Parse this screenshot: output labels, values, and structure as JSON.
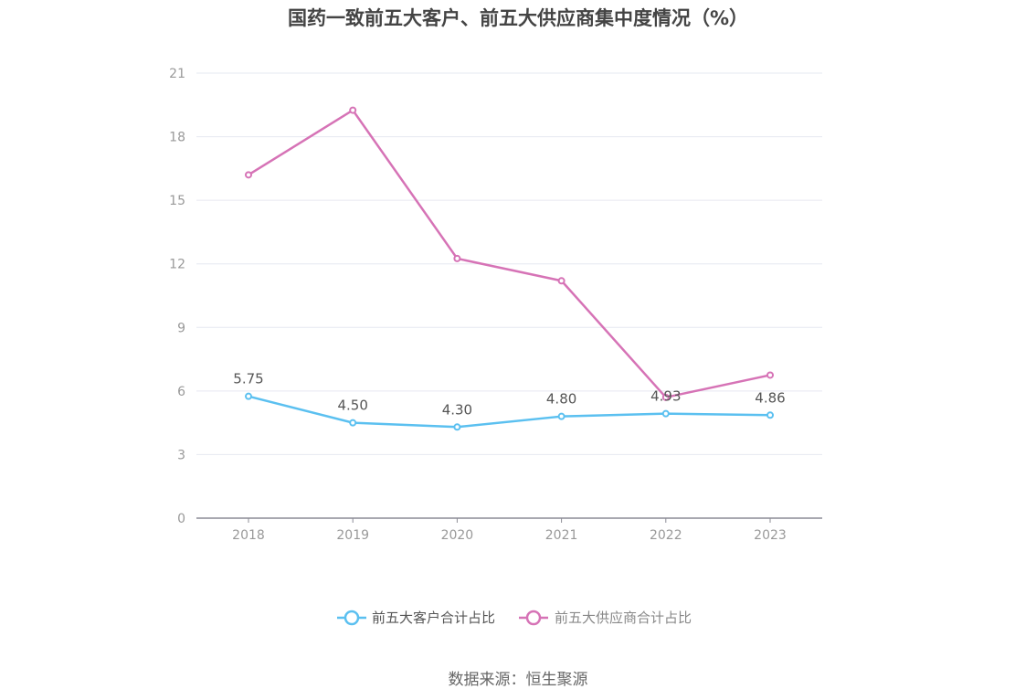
{
  "chart_data": {
    "type": "line",
    "title": "国药一致前五大客户、前五大供应商集中度情况（%）",
    "categories": [
      "2018",
      "2019",
      "2020",
      "2021",
      "2022",
      "2023"
    ],
    "ylim": [
      0,
      21
    ],
    "yticks": [
      0,
      3,
      6,
      9,
      12,
      15,
      18,
      21
    ],
    "grid": true,
    "legend_position": "bottom",
    "series": [
      {
        "name": "前五大客户合计占比",
        "color": "#5bc0f0",
        "values": [
          5.75,
          4.5,
          4.3,
          4.8,
          4.93,
          4.86
        ],
        "labels": [
          "5.75",
          "4.50",
          "4.30",
          "4.80",
          "4.93",
          "4.86"
        ]
      },
      {
        "name": "前五大供应商合计占比",
        "color": "#d673b6",
        "values": [
          16.2,
          19.25,
          12.25,
          11.2,
          5.7,
          6.75
        ]
      }
    ]
  },
  "source": "数据来源：恒生聚源"
}
